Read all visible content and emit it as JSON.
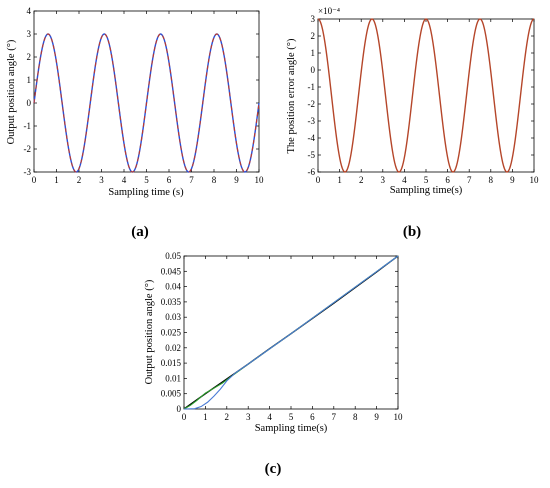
{
  "chart_data": [
    {
      "panel": "(a)",
      "type": "line",
      "xlabel": "Sampling time (s)",
      "ylabel": "Output position angle (°)",
      "xlim": [
        0,
        10
      ],
      "ylim": [
        -3,
        4
      ],
      "xticks": [
        0,
        1,
        2,
        3,
        4,
        5,
        6,
        7,
        8,
        9,
        10
      ],
      "yticks": [
        -3,
        -2,
        -1,
        0,
        1,
        2,
        3,
        4
      ],
      "grid": false,
      "series": [
        {
          "color": "#2a4fd6",
          "style": "solid",
          "amplitude": 3,
          "period_s": 2.5,
          "phase": 0
        },
        {
          "color": "#c0392b",
          "style": "dashed",
          "amplitude": 3,
          "period_s": 2.5,
          "phase": 0
        }
      ]
    },
    {
      "panel": "(b)",
      "type": "line",
      "xlabel": "Sampling time(s)",
      "ylabel": "The position error angle (°)",
      "y_multiplier": "×10⁻⁴",
      "xlim": [
        0,
        10
      ],
      "ylim": [
        -6,
        3
      ],
      "xticks": [
        0,
        1,
        2,
        3,
        4,
        5,
        6,
        7,
        8,
        9,
        10
      ],
      "yticks": [
        -6,
        -5,
        -4,
        -3,
        -2,
        -1,
        0,
        1,
        2,
        3
      ],
      "grid": false,
      "series": [
        {
          "color": "#b5462a",
          "style": "solid",
          "min": -6,
          "max": 3,
          "period_s": 2.5
        }
      ]
    },
    {
      "panel": "(c)",
      "type": "line",
      "xlabel": "Sampling time(s)",
      "ylabel": "Output position angle (°)",
      "xlim": [
        0,
        10
      ],
      "ylim": [
        0,
        0.05
      ],
      "xticks": [
        0,
        1,
        2,
        3,
        4,
        5,
        6,
        7,
        8,
        9,
        10
      ],
      "yticks": [
        0,
        0.005,
        0.01,
        0.015,
        0.02,
        0.025,
        0.03,
        0.035,
        0.04,
        0.045,
        0.05
      ],
      "grid": false,
      "series": [
        {
          "color": "#000000",
          "x": [
            0,
            1,
            2,
            3,
            4,
            5,
            6,
            7,
            8,
            9,
            10
          ],
          "y": [
            0,
            0.005,
            0.0098,
            0.0147,
            0.0197,
            0.0246,
            0.0296,
            0.0346,
            0.0397,
            0.0448,
            0.05
          ]
        },
        {
          "color": "#2ca02c",
          "x": [
            0,
            0.3,
            0.6,
            1.0,
            1.4,
            1.8,
            2.2,
            3,
            5,
            10
          ],
          "y": [
            0,
            0.0012,
            0.0028,
            0.0052,
            0.0068,
            0.0085,
            0.0106,
            0.0147,
            0.0246,
            0.05
          ]
        },
        {
          "color": "#4a7bd6",
          "x": [
            0,
            0.5,
            0.8,
            1.1,
            1.4,
            1.7,
            2.0,
            2.4,
            3,
            5,
            10
          ],
          "y": [
            0,
            0.0001,
            0.0008,
            0.0022,
            0.0042,
            0.0065,
            0.0092,
            0.0118,
            0.0147,
            0.0246,
            0.05
          ]
        }
      ]
    }
  ]
}
